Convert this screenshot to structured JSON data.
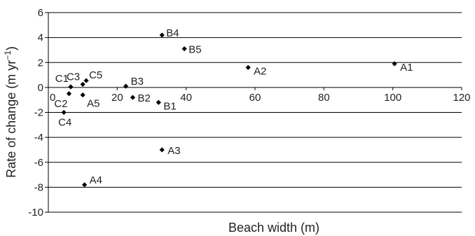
{
  "chart_data": {
    "type": "scatter",
    "title": "",
    "xlabel": "Beach width (m)",
    "ylabel_main": "Rate of change (m yr",
    "ylabel_sup": "−1",
    "ylabel_close": ")",
    "xlim": [
      0,
      120
    ],
    "ylim": [
      -10,
      6
    ],
    "x_ticks": [
      0,
      20,
      40,
      60,
      80,
      100,
      120
    ],
    "y_ticks": [
      -10,
      -8,
      -6,
      -4,
      -2,
      0,
      2,
      4,
      6
    ],
    "grid": "horizontal",
    "legend": "none",
    "marker_color": "#000000",
    "points": [
      {
        "label": "A1",
        "x": 100.5,
        "y": 1.9
      },
      {
        "label": "A2",
        "x": 58,
        "y": 1.6
      },
      {
        "label": "A3",
        "x": 33,
        "y": -5.0
      },
      {
        "label": "A4",
        "x": 10.5,
        "y": -7.8
      },
      {
        "label": "A5",
        "x": 10,
        "y": -0.6
      },
      {
        "label": "B1",
        "x": 32,
        "y": -1.2
      },
      {
        "label": "B2",
        "x": 24.5,
        "y": -0.8
      },
      {
        "label": "B3",
        "x": 22.5,
        "y": 0.1
      },
      {
        "label": "B4",
        "x": 33,
        "y": 4.2
      },
      {
        "label": "B5",
        "x": 39.5,
        "y": 3.1
      },
      {
        "label": "C1",
        "x": 6.5,
        "y": 0.05
      },
      {
        "label": "C2",
        "x": 6,
        "y": -0.5
      },
      {
        "label": "C3",
        "x": 10,
        "y": 0.25
      },
      {
        "label": "C4",
        "x": 4.5,
        "y": -2.0
      },
      {
        "label": "C5",
        "x": 11,
        "y": 0.55
      }
    ]
  }
}
